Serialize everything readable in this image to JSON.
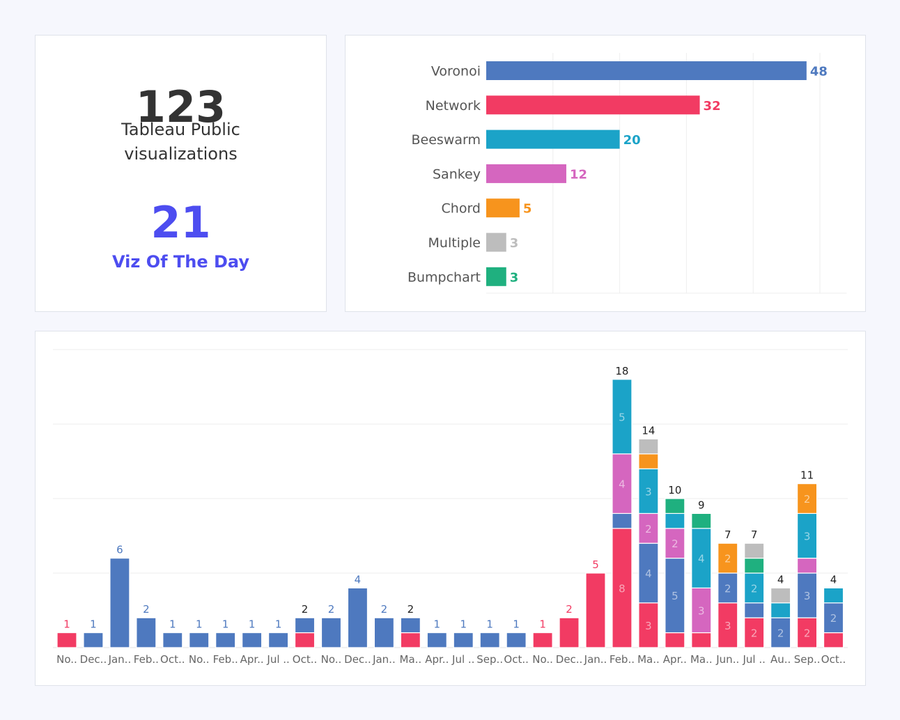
{
  "kpis": {
    "total_value": "123",
    "total_label_line1": "Tableau Public",
    "total_label_line2": "visualizations",
    "votd_value": "21",
    "votd_label": "Viz Of The Day",
    "votd_color": "#4d4df0"
  },
  "colors": {
    "Voronoi": "#4e79bf",
    "Network": "#f23b63",
    "Beeswarm": "#1ba3c8",
    "Sankey": "#d566bf",
    "Chord": "#f7941d",
    "Multiple": "#bdbdbd",
    "Bumpchart": "#1fb07f"
  },
  "chart_data": [
    {
      "type": "bar",
      "orientation": "horizontal",
      "title": "",
      "categories": [
        "Voronoi",
        "Network",
        "Beeswarm",
        "Sankey",
        "Chord",
        "Multiple",
        "Bumpchart"
      ],
      "values": [
        48,
        32,
        20,
        12,
        5,
        3,
        3
      ],
      "xlim": [
        0,
        54
      ],
      "grid": true
    },
    {
      "type": "bar",
      "stacked": true,
      "title": "",
      "ylim": [
        0,
        20
      ],
      "grid": true,
      "categories": [
        "No..",
        "Dec..",
        "Jan..",
        "Feb..",
        "Oct..",
        "No..",
        "Feb..",
        "Apr..",
        "Jul ..",
        "Oct..",
        "No..",
        "Dec..",
        "Jan..",
        "Ma..",
        "Apr..",
        "Jul ..",
        "Sep..",
        "Oct..",
        "No..",
        "Dec..",
        "Jan..",
        "Feb..",
        "Ma..",
        "Apr..",
        "Ma..",
        "Jun..",
        "Jul ..",
        "Au..",
        "Sep..",
        "Oct.."
      ],
      "totals": [
        1,
        1,
        6,
        2,
        1,
        1,
        1,
        1,
        1,
        2,
        2,
        4,
        2,
        2,
        1,
        1,
        1,
        1,
        1,
        2,
        5,
        18,
        14,
        10,
        9,
        7,
        7,
        4,
        11,
        4
      ],
      "series": [
        {
          "name": "Network",
          "values": [
            1,
            0,
            0,
            0,
            0,
            0,
            0,
            0,
            0,
            1,
            0,
            0,
            0,
            1,
            0,
            0,
            0,
            0,
            1,
            2,
            5,
            8,
            3,
            1,
            1,
            3,
            2,
            0,
            2,
            1
          ]
        },
        {
          "name": "Voronoi",
          "values": [
            0,
            1,
            6,
            2,
            1,
            1,
            1,
            1,
            1,
            1,
            2,
            4,
            2,
            1,
            1,
            1,
            1,
            1,
            0,
            0,
            0,
            1,
            4,
            5,
            0,
            2,
            1,
            2,
            3,
            2
          ]
        },
        {
          "name": "Sankey",
          "values": [
            0,
            0,
            0,
            0,
            0,
            0,
            0,
            0,
            0,
            0,
            0,
            0,
            0,
            0,
            0,
            0,
            0,
            0,
            0,
            0,
            0,
            4,
            2,
            2,
            3,
            0,
            0,
            0,
            1,
            0
          ]
        },
        {
          "name": "Beeswarm",
          "values": [
            0,
            0,
            0,
            0,
            0,
            0,
            0,
            0,
            0,
            0,
            0,
            0,
            0,
            0,
            0,
            0,
            0,
            0,
            0,
            0,
            0,
            5,
            3,
            1,
            4,
            0,
            2,
            1,
            3,
            1
          ]
        },
        {
          "name": "Bumpchart",
          "values": [
            0,
            0,
            0,
            0,
            0,
            0,
            0,
            0,
            0,
            0,
            0,
            0,
            0,
            0,
            0,
            0,
            0,
            0,
            0,
            0,
            0,
            0,
            0,
            1,
            1,
            0,
            1,
            0,
            0,
            0
          ]
        },
        {
          "name": "Chord",
          "values": [
            0,
            0,
            0,
            0,
            0,
            0,
            0,
            0,
            0,
            0,
            0,
            0,
            0,
            0,
            0,
            0,
            0,
            0,
            0,
            0,
            0,
            0,
            1,
            0,
            0,
            2,
            0,
            0,
            2,
            0
          ]
        },
        {
          "name": "Multiple",
          "values": [
            0,
            0,
            0,
            0,
            0,
            0,
            0,
            0,
            0,
            0,
            0,
            0,
            0,
            0,
            0,
            0,
            0,
            0,
            0,
            0,
            0,
            0,
            1,
            0,
            0,
            0,
            1,
            1,
            0,
            0
          ]
        }
      ]
    }
  ]
}
